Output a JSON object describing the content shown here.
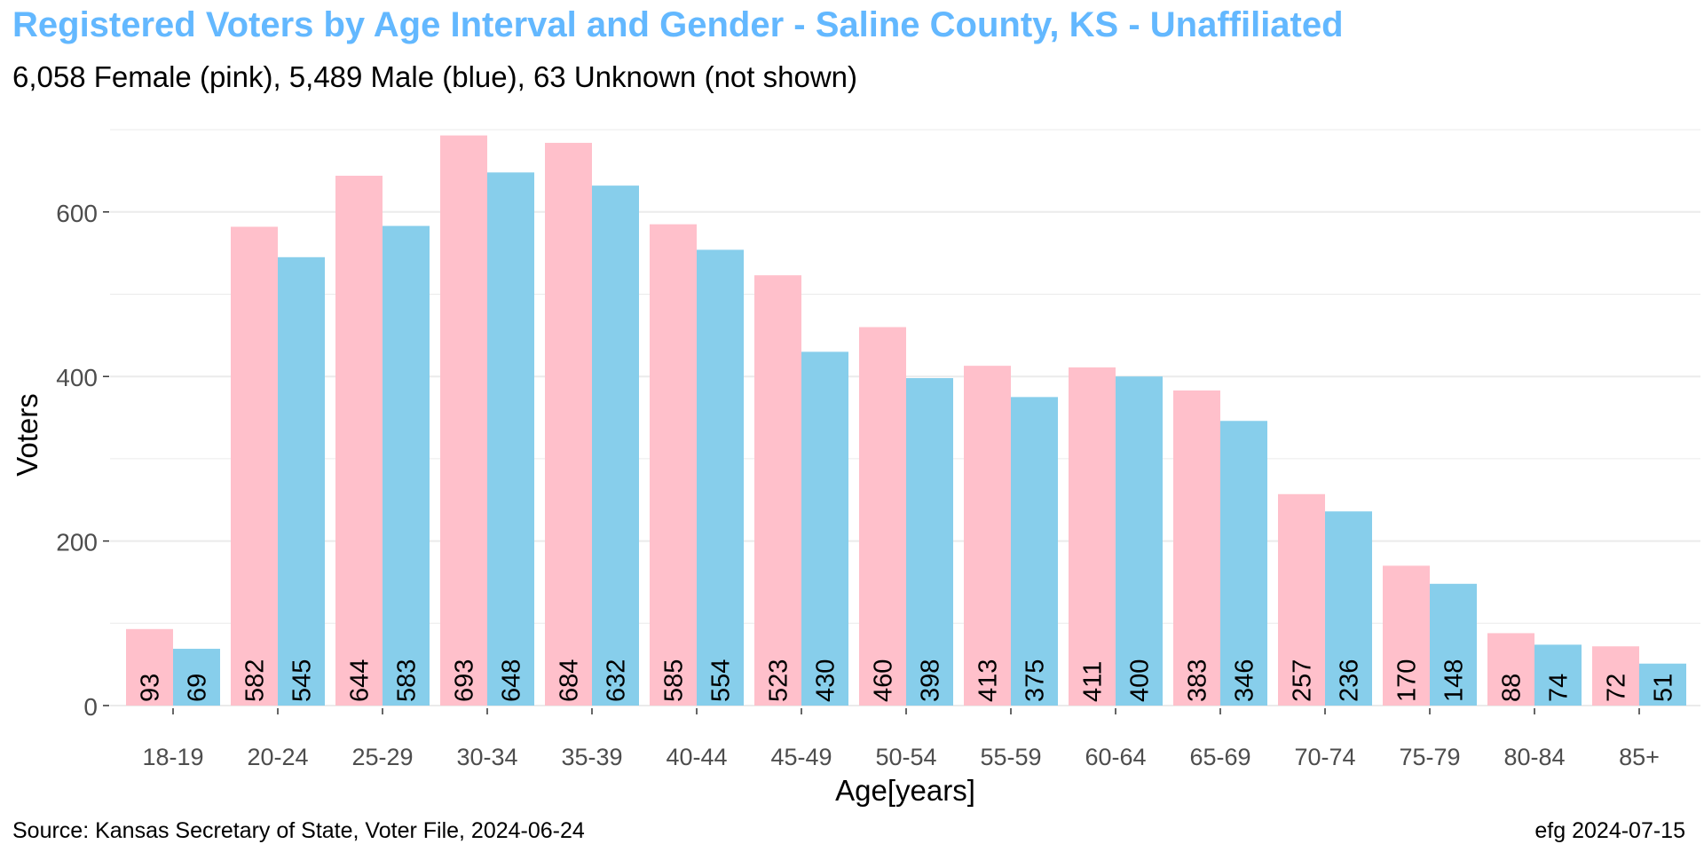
{
  "header": {
    "title": "Registered Voters by Age Interval and Gender - Saline County, KS - Unaffiliated",
    "subtitle": "6,058 Female (pink),  5,489 Male (blue),  63 Unknown (not shown)"
  },
  "footer": {
    "source": "Source: Kansas Secretary of State, Voter File, 2024-06-24",
    "credit": "efg 2024-07-15"
  },
  "colors": {
    "female": "#ffc0cb",
    "male": "#87ceeb",
    "title": "#63b8ff",
    "grid": "#ebebeb"
  },
  "chart_data": {
    "type": "bar",
    "title": "Registered Voters by Age Interval and Gender - Saline County, KS - Unaffiliated",
    "subtitle": "6,058 Female (pink),  5,489 Male (blue),  63 Unknown (not shown)",
    "xlabel": "Age[years]",
    "ylabel": "Voters",
    "ylim": [
      0,
      700
    ],
    "yticks": [
      0,
      200,
      400,
      600
    ],
    "grid": true,
    "legend": "none",
    "categories": [
      "18-19",
      "20-24",
      "25-29",
      "30-34",
      "35-39",
      "40-44",
      "45-49",
      "50-54",
      "55-59",
      "60-64",
      "65-69",
      "70-74",
      "75-79",
      "80-84",
      "85+"
    ],
    "series": [
      {
        "name": "Female",
        "color": "#ffc0cb",
        "values": [
          93,
          582,
          644,
          693,
          684,
          585,
          523,
          460,
          413,
          411,
          383,
          257,
          170,
          88,
          72
        ]
      },
      {
        "name": "Male",
        "color": "#87ceeb",
        "values": [
          69,
          545,
          583,
          648,
          632,
          554,
          430,
          398,
          375,
          400,
          346,
          236,
          148,
          74,
          51
        ]
      }
    ]
  }
}
